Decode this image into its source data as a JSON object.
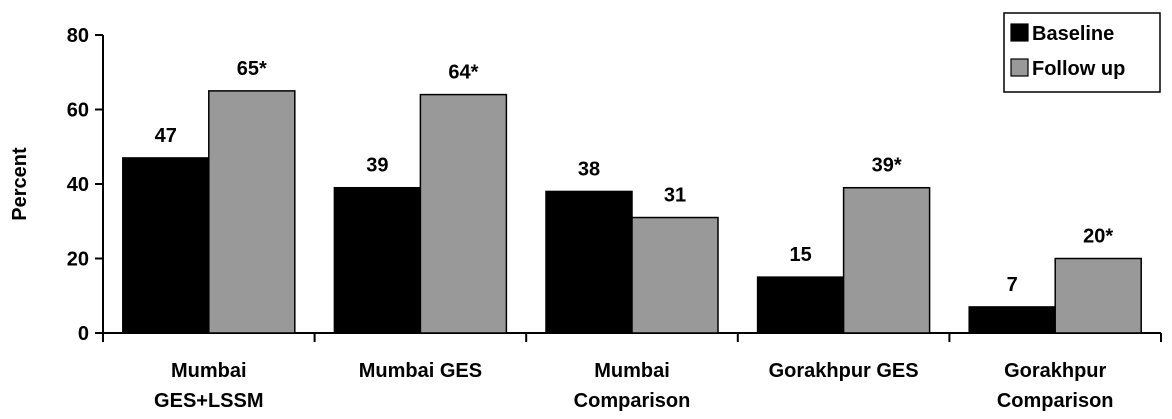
{
  "chart_data": {
    "type": "bar",
    "title": "",
    "xlabel": "",
    "ylabel": "Percent",
    "ylim": [
      0,
      80
    ],
    "yticks": [
      0,
      20,
      40,
      60,
      80
    ],
    "grid": false,
    "legend_position": "top-right",
    "categories": [
      [
        "Mumbai",
        "GES+LSSM"
      ],
      [
        "Mumbai GES"
      ],
      [
        "Mumbai",
        "Comparison"
      ],
      [
        "Gorakhpur GES"
      ],
      [
        "Gorakhpur",
        "Comparison"
      ]
    ],
    "series": [
      {
        "name": "Baseline",
        "color": "#000000",
        "values": [
          47,
          39,
          38,
          15,
          7
        ],
        "labels": [
          "47",
          "39",
          "38",
          "15",
          "7"
        ]
      },
      {
        "name": "Follow up",
        "color": "#999999",
        "values": [
          65,
          64,
          31,
          39,
          20
        ],
        "labels": [
          "65*",
          "64*",
          "31",
          "39*",
          "20*"
        ]
      }
    ]
  }
}
